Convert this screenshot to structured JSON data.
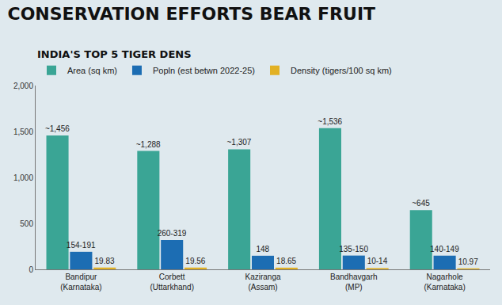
{
  "chart_data": {
    "type": "bar",
    "title": "CONSERVATION EFFORTS BEAR FRUIT",
    "subtitle": "INDIA'S TOP 5 TIGER DENS",
    "categories": [
      "Bandipur (Karnataka)",
      "Corbett (Uttarkhand)",
      "Kaziranga (Assam)",
      "Bandhavgarh (MP)",
      "Nagarhole (Karnataka)"
    ],
    "series": [
      {
        "name": "Area (sq km)",
        "color": "#3aa595",
        "values": [
          1456,
          1288,
          1307,
          1536,
          645
        ],
        "value_labels": [
          "~1,456",
          "~1,288",
          "~1,307",
          "~1,536",
          "~645"
        ]
      },
      {
        "name": "Popln (est betwn 2022-25)",
        "color": "#1c6db3",
        "values": [
          191,
          319,
          148,
          150,
          149
        ],
        "value_labels": [
          "154-191",
          "260-319",
          "148",
          "135-150",
          "140-149"
        ]
      },
      {
        "name": "Density (tigers/100 sq km)",
        "color": "#e2b124",
        "values": [
          19.83,
          19.56,
          18.65,
          14,
          10.97
        ],
        "value_labels": [
          "19.83",
          "19.56",
          "18.65",
          "10-14",
          "10.97"
        ]
      }
    ],
    "ylim": [
      0,
      2000
    ],
    "yticks": [
      0,
      500,
      {
        "value": 1000,
        "label": "1,000"
      },
      {
        "value": 1500,
        "label": "1,500"
      },
      {
        "value": 2000,
        "label": "2,000"
      }
    ],
    "grid": false,
    "legend": "top",
    "data_labels": true
  }
}
